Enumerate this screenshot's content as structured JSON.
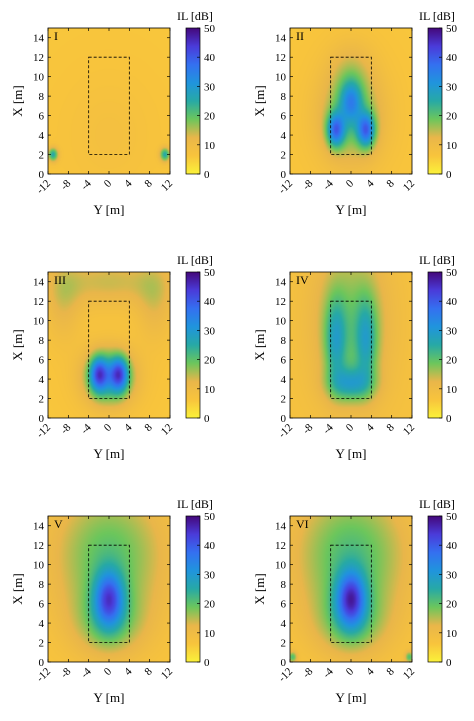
{
  "caption": "",
  "colorbar": {
    "label": "IL [dB]",
    "ticks": [
      0,
      10,
      20,
      30,
      40,
      50
    ],
    "range": [
      0,
      50
    ],
    "colormap": [
      "#fbf23a",
      "#f8c43c",
      "#e9b64a",
      "#6cc65c",
      "#27a9a5",
      "#2094dd",
      "#3470f0",
      "#4a3bd9",
      "#44087a"
    ]
  },
  "chart_data": [
    {
      "type": "heatmap",
      "panel_label": "I",
      "xlabel": "Y [m]",
      "ylabel": "X [m]",
      "x_ticks": [
        "-12",
        "-8",
        "-4",
        "0",
        "4",
        "8",
        "12"
      ],
      "y_ticks": [
        "0",
        "2",
        "4",
        "6",
        "8",
        "10",
        "12",
        "14"
      ],
      "xlim": [
        -12,
        12
      ],
      "ylim": [
        0,
        15
      ],
      "dashed_region": {
        "y_range": [
          -4,
          4
        ],
        "x_range": [
          2,
          12
        ]
      },
      "blobs": [
        {
          "y": 0,
          "x": 4,
          "sy": 6,
          "sx": 4,
          "value": 8
        },
        {
          "y": -11,
          "x": 2,
          "sy": 0.7,
          "sx": 0.5,
          "value": 25
        },
        {
          "y": 11,
          "x": 2,
          "sy": 0.7,
          "sx": 0.5,
          "value": 25
        }
      ],
      "background_il": 6
    },
    {
      "type": "heatmap",
      "panel_label": "II",
      "xlabel": "Y [m]",
      "ylabel": "X [m]",
      "x_ticks": [
        "-12",
        "-8",
        "-4",
        "0",
        "4",
        "8",
        "12"
      ],
      "y_ticks": [
        "0",
        "2",
        "4",
        "6",
        "8",
        "10",
        "12",
        "14"
      ],
      "xlim": [
        -12,
        12
      ],
      "ylim": [
        0,
        15
      ],
      "dashed_region": {
        "y_range": [
          -4,
          4
        ],
        "x_range": [
          2,
          12
        ]
      },
      "blobs": [
        {
          "y": 0,
          "x": 6,
          "sy": 4.5,
          "sx": 3.5,
          "value": 20
        },
        {
          "y": -3,
          "x": 4.5,
          "sy": 1.2,
          "sx": 1.2,
          "value": 30
        },
        {
          "y": 3,
          "x": 4.5,
          "sy": 1.2,
          "sx": 1.2,
          "value": 30
        },
        {
          "y": 0,
          "x": 7.5,
          "sy": 1.5,
          "sx": 1.5,
          "value": 22
        },
        {
          "y": 0,
          "x": 11,
          "sy": 3,
          "sx": 2,
          "value": 10
        }
      ],
      "background_il": 6
    },
    {
      "type": "heatmap",
      "panel_label": "III",
      "xlabel": "Y [m]",
      "ylabel": "X [m]",
      "x_ticks": [
        "-12",
        "-8",
        "-4",
        "0",
        "4",
        "8",
        "12"
      ],
      "y_ticks": [
        "0",
        "2",
        "4",
        "6",
        "8",
        "10",
        "12",
        "14"
      ],
      "xlim": [
        -12,
        12
      ],
      "ylim": [
        0,
        15
      ],
      "dashed_region": {
        "y_range": [
          -4,
          4
        ],
        "x_range": [
          2,
          12
        ]
      },
      "blobs": [
        {
          "y": 0,
          "x": 4.2,
          "sy": 3.5,
          "sx": 2,
          "value": 27
        },
        {
          "y": -2,
          "x": 4.5,
          "sy": 1.2,
          "sx": 1.2,
          "value": 28
        },
        {
          "y": 2,
          "x": 4.5,
          "sy": 1.2,
          "sx": 1.2,
          "value": 28
        },
        {
          "y": 0,
          "x": 14,
          "sy": 8,
          "sx": 1.8,
          "value": 14
        },
        {
          "y": -9,
          "x": 12,
          "sy": 2.5,
          "sx": 3,
          "value": 12
        },
        {
          "y": 9,
          "x": 12,
          "sy": 2.5,
          "sx": 3,
          "value": 12
        }
      ],
      "background_il": 6
    },
    {
      "type": "heatmap",
      "panel_label": "IV",
      "xlabel": "Y [m]",
      "ylabel": "X [m]",
      "x_ticks": [
        "-12",
        "-8",
        "-4",
        "0",
        "4",
        "8",
        "12"
      ],
      "y_ticks": [
        "0",
        "2",
        "4",
        "6",
        "8",
        "10",
        "12",
        "14"
      ],
      "xlim": [
        -12,
        12
      ],
      "ylim": [
        0,
        15
      ],
      "dashed_region": {
        "y_range": [
          -4,
          4
        ],
        "x_range": [
          2,
          12
        ]
      },
      "blobs": [
        {
          "y": 0,
          "x": 10,
          "sy": 5.5,
          "sx": 6,
          "value": 18
        },
        {
          "y": 0,
          "x": 3.5,
          "sy": 3,
          "sx": 1.2,
          "value": 22
        },
        {
          "y": -3,
          "x": 8,
          "sy": 1.5,
          "sx": 3,
          "value": 20
        },
        {
          "y": 3,
          "x": 8,
          "sy": 1.5,
          "sx": 3,
          "value": 20
        }
      ],
      "background_il": 7
    },
    {
      "type": "heatmap",
      "panel_label": "V",
      "xlabel": "Y [m]",
      "ylabel": "X [m]",
      "x_ticks": [
        "-12",
        "-8",
        "-4",
        "0",
        "4",
        "8",
        "12"
      ],
      "y_ticks": [
        "0",
        "2",
        "4",
        "6",
        "8",
        "10",
        "12",
        "14"
      ],
      "xlim": [
        -12,
        12
      ],
      "ylim": [
        0,
        15
      ],
      "dashed_region": {
        "y_range": [
          -4,
          4
        ],
        "x_range": [
          2,
          12
        ]
      },
      "blobs": [
        {
          "y": 0,
          "x": 11,
          "sy": 8,
          "sx": 5,
          "value": 20
        },
        {
          "y": 0,
          "x": 6.5,
          "sy": 2,
          "sx": 2,
          "value": 30
        },
        {
          "y": 0,
          "x": 4,
          "sy": 5,
          "sx": 2.5,
          "value": 16
        }
      ],
      "background_il": 6
    },
    {
      "type": "heatmap",
      "panel_label": "VI",
      "xlabel": "Y [m]",
      "ylabel": "X [m]",
      "x_ticks": [
        "-12",
        "-8",
        "-4",
        "0",
        "4",
        "8",
        "12"
      ],
      "y_ticks": [
        "0",
        "2",
        "4",
        "6",
        "8",
        "10",
        "12",
        "14"
      ],
      "xlim": [
        -12,
        12
      ],
      "ylim": [
        0,
        15
      ],
      "dashed_region": {
        "y_range": [
          -4,
          4
        ],
        "x_range": [
          2,
          12
        ]
      },
      "blobs": [
        {
          "y": 0,
          "x": 11,
          "sy": 8,
          "sx": 5,
          "value": 21
        },
        {
          "y": 0,
          "x": 6.5,
          "sy": 2,
          "sx": 2,
          "value": 32
        },
        {
          "y": 0,
          "x": 4,
          "sy": 5,
          "sx": 2.5,
          "value": 16
        },
        {
          "y": -11.5,
          "x": 0.5,
          "sy": 0.6,
          "sx": 0.4,
          "value": 20
        },
        {
          "y": 11.5,
          "x": 0.5,
          "sy": 0.6,
          "sx": 0.4,
          "value": 20
        }
      ],
      "background_il": 6
    }
  ]
}
